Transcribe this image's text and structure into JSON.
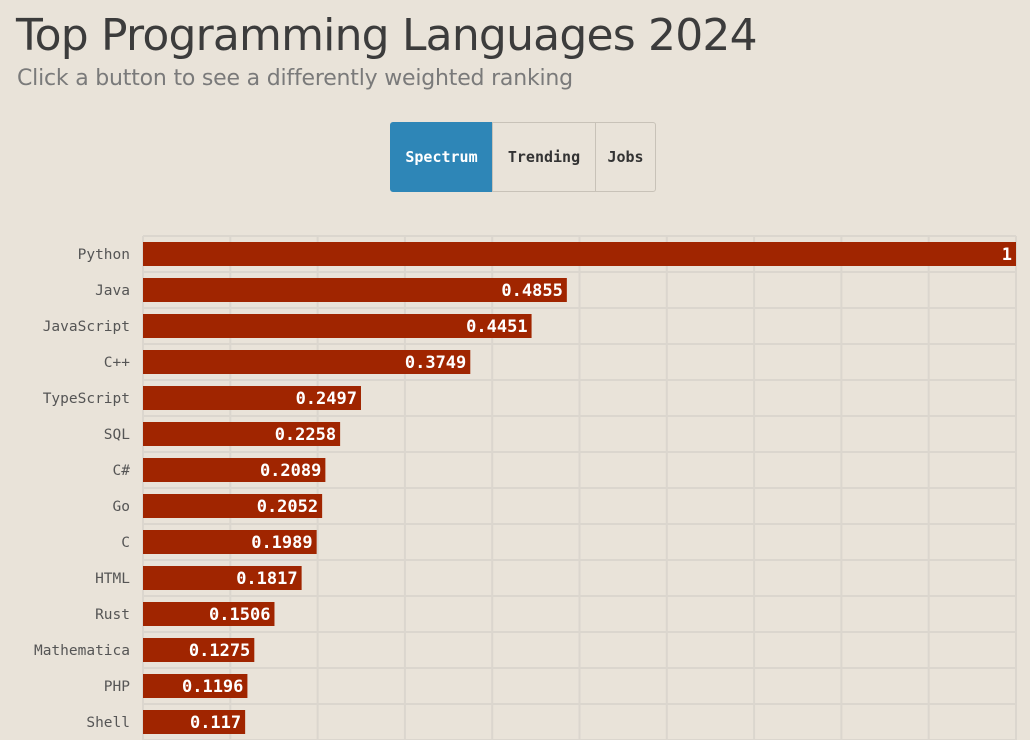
{
  "header": {
    "title": "Top Programming Languages 2024",
    "subtitle": "Click a button to see a differently weighted ranking"
  },
  "buttons": [
    {
      "label": "Spectrum",
      "active": true
    },
    {
      "label": "Trending",
      "active": false
    },
    {
      "label": "Jobs",
      "active": false
    }
  ],
  "colors": {
    "background": "#e9e3d9",
    "bar": "#a02500",
    "active_button": "#2e86b7",
    "grid": "#dbd6ce"
  },
  "chart_data": {
    "type": "bar",
    "orientation": "horizontal",
    "title": "Top Programming Languages 2024",
    "subtitle": "Click a button to see a differently weighted ranking",
    "categories": [
      "Python",
      "Java",
      "JavaScript",
      "C++",
      "TypeScript",
      "SQL",
      "C#",
      "Go",
      "C",
      "HTML",
      "Rust",
      "Mathematica",
      "PHP",
      "Shell"
    ],
    "values": [
      1,
      0.4855,
      0.4451,
      0.3749,
      0.2497,
      0.2258,
      0.2089,
      0.2052,
      0.1989,
      0.1817,
      0.1506,
      0.1275,
      0.1196,
      0.117
    ],
    "xlim": [
      0,
      1
    ],
    "grid": true,
    "legend": "none"
  }
}
